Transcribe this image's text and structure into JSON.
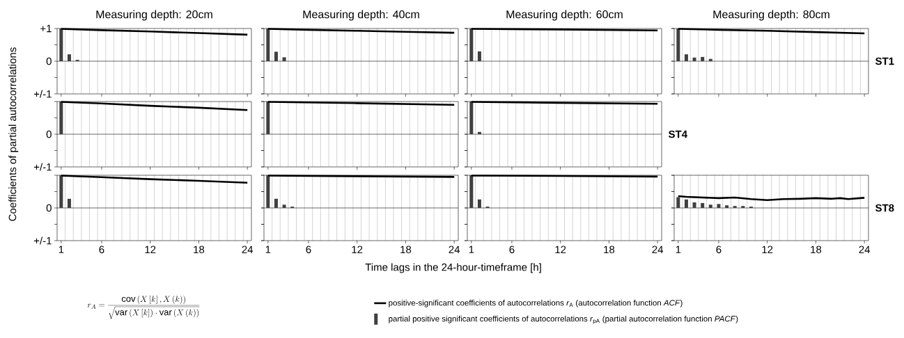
{
  "chart_data": [
    {
      "type": "bar",
      "title": "Measuring depth: 20cm",
      "tick_labels": "y",
      "grid": "x",
      "xlim": [
        0.5,
        24.5
      ],
      "ylim": [
        -1,
        1
      ],
      "xticks": [
        1,
        {
          "value": 1.5,
          "label": null
        },
        {
          "value": 2.5,
          "label": null
        },
        {
          "value": 3.5,
          "label": null
        },
        {
          "value": 4.5,
          "label": null
        },
        {
          "value": 5.5,
          "label": null
        },
        6,
        {
          "value": 6.5,
          "label": null
        },
        {
          "value": 7.5,
          "label": null
        },
        {
          "value": 8.5,
          "label": null
        },
        {
          "value": 9.5,
          "label": null
        },
        {
          "value": 10.5,
          "label": null
        },
        {
          "value": 11.5,
          "label": null
        },
        12,
        {
          "value": 12.5,
          "label": null
        },
        {
          "value": 13.5,
          "label": null
        },
        {
          "value": 14.5,
          "label": null
        },
        {
          "value": 15.5,
          "label": null
        },
        {
          "value": 16.5,
          "label": null
        },
        {
          "value": 17.5,
          "label": null
        },
        18,
        {
          "value": 18.5,
          "label": null
        },
        {
          "value": 19.5,
          "label": null
        },
        {
          "value": 20.5,
          "label": null
        },
        {
          "value": 21.5,
          "label": null
        },
        {
          "value": 22.5,
          "label": null
        },
        {
          "value": 23.5,
          "label": null
        },
        24
      ],
      "yticks": [
        {
          "value": -1,
          "label": "+/-1"
        },
        {
          "value": -0.5,
          "label": null
        },
        0,
        {
          "value": 0.5,
          "label": null
        },
        {
          "value": 1,
          "label": "+1"
        }
      ],
      "series": [
        {
          "color": "#404040",
          "x": [
            1,
            2,
            3
          ],
          "values": [
            1.0,
            0.21,
            0.04
          ]
        },
        {
          "type": "line",
          "color": "#000000",
          "x": [
            1,
            6,
            12,
            18,
            24
          ],
          "values": [
            0.99,
            0.95,
            0.91,
            0.86,
            0.81
          ]
        }
      ]
    },
    {
      "type": "bar",
      "title": "Measuring depth: 40cm",
      "tick_labels": false,
      "grid": "x",
      "xlim": [
        0.5,
        24.5
      ],
      "ylim": [
        -1,
        1
      ],
      "xticks": [
        1,
        {
          "value": 1.5,
          "label": null
        },
        {
          "value": 2.5,
          "label": null
        },
        {
          "value": 3.5,
          "label": null
        },
        {
          "value": 4.5,
          "label": null
        },
        {
          "value": 5.5,
          "label": null
        },
        6,
        {
          "value": 6.5,
          "label": null
        },
        {
          "value": 7.5,
          "label": null
        },
        {
          "value": 8.5,
          "label": null
        },
        {
          "value": 9.5,
          "label": null
        },
        {
          "value": 10.5,
          "label": null
        },
        {
          "value": 11.5,
          "label": null
        },
        12,
        {
          "value": 12.5,
          "label": null
        },
        {
          "value": 13.5,
          "label": null
        },
        {
          "value": 14.5,
          "label": null
        },
        {
          "value": 15.5,
          "label": null
        },
        {
          "value": 16.5,
          "label": null
        },
        {
          "value": 17.5,
          "label": null
        },
        18,
        {
          "value": 18.5,
          "label": null
        },
        {
          "value": 19.5,
          "label": null
        },
        {
          "value": 20.5,
          "label": null
        },
        {
          "value": 21.5,
          "label": null
        },
        {
          "value": 22.5,
          "label": null
        },
        {
          "value": 23.5,
          "label": null
        },
        24
      ],
      "yticks": [
        {
          "value": -1,
          "label": null
        },
        {
          "value": -0.5,
          "label": null
        },
        {
          "value": 0,
          "label": null
        },
        {
          "value": 0.5,
          "label": null
        },
        {
          "value": 1,
          "label": null
        }
      ],
      "series": [
        {
          "color": "#404040",
          "x": [
            1,
            2,
            3
          ],
          "values": [
            1.0,
            0.29,
            0.12
          ]
        },
        {
          "type": "line",
          "color": "#000000",
          "x": [
            1,
            6,
            12,
            18,
            24
          ],
          "values": [
            0.99,
            0.96,
            0.93,
            0.9,
            0.87
          ]
        }
      ]
    },
    {
      "type": "bar",
      "title": "Measuring depth: 60cm",
      "tick_labels": false,
      "grid": "x",
      "xlim": [
        0.5,
        24.5
      ],
      "ylim": [
        -1,
        1
      ],
      "xticks": [
        1,
        {
          "value": 1.5,
          "label": null
        },
        {
          "value": 2.5,
          "label": null
        },
        {
          "value": 3.5,
          "label": null
        },
        {
          "value": 4.5,
          "label": null
        },
        {
          "value": 5.5,
          "label": null
        },
        6,
        {
          "value": 6.5,
          "label": null
        },
        {
          "value": 7.5,
          "label": null
        },
        {
          "value": 8.5,
          "label": null
        },
        {
          "value": 9.5,
          "label": null
        },
        {
          "value": 10.5,
          "label": null
        },
        {
          "value": 11.5,
          "label": null
        },
        12,
        {
          "value": 12.5,
          "label": null
        },
        {
          "value": 13.5,
          "label": null
        },
        {
          "value": 14.5,
          "label": null
        },
        {
          "value": 15.5,
          "label": null
        },
        {
          "value": 16.5,
          "label": null
        },
        {
          "value": 17.5,
          "label": null
        },
        18,
        {
          "value": 18.5,
          "label": null
        },
        {
          "value": 19.5,
          "label": null
        },
        {
          "value": 20.5,
          "label": null
        },
        {
          "value": 21.5,
          "label": null
        },
        {
          "value": 22.5,
          "label": null
        },
        {
          "value": 23.5,
          "label": null
        },
        24
      ],
      "yticks": [
        {
          "value": -1,
          "label": null
        },
        {
          "value": -0.5,
          "label": null
        },
        {
          "value": 0,
          "label": null
        },
        {
          "value": 0.5,
          "label": null
        },
        {
          "value": 1,
          "label": null
        }
      ],
      "series": [
        {
          "color": "#404040",
          "x": [
            1,
            2
          ],
          "values": [
            1.0,
            0.3
          ]
        },
        {
          "type": "line",
          "color": "#000000",
          "x": [
            1,
            12,
            24
          ],
          "values": [
            0.99,
            0.97,
            0.94
          ]
        }
      ]
    },
    {
      "type": "bar",
      "title": "Measuring depth: 80cm",
      "y2label": "ST1",
      "tick_labels": false,
      "grid": "x",
      "xlim": [
        0.5,
        24.5
      ],
      "ylim": [
        -1,
        1
      ],
      "xticks": [
        1,
        {
          "value": 1.5,
          "label": null
        },
        {
          "value": 2.5,
          "label": null
        },
        {
          "value": 3.5,
          "label": null
        },
        {
          "value": 4.5,
          "label": null
        },
        {
          "value": 5.5,
          "label": null
        },
        6,
        {
          "value": 6.5,
          "label": null
        },
        {
          "value": 7.5,
          "label": null
        },
        {
          "value": 8.5,
          "label": null
        },
        {
          "value": 9.5,
          "label": null
        },
        {
          "value": 10.5,
          "label": null
        },
        {
          "value": 11.5,
          "label": null
        },
        12,
        {
          "value": 12.5,
          "label": null
        },
        {
          "value": 13.5,
          "label": null
        },
        {
          "value": 14.5,
          "label": null
        },
        {
          "value": 15.5,
          "label": null
        },
        {
          "value": 16.5,
          "label": null
        },
        {
          "value": 17.5,
          "label": null
        },
        18,
        {
          "value": 18.5,
          "label": null
        },
        {
          "value": 19.5,
          "label": null
        },
        {
          "value": 20.5,
          "label": null
        },
        {
          "value": 21.5,
          "label": null
        },
        {
          "value": 22.5,
          "label": null
        },
        {
          "value": 23.5,
          "label": null
        },
        24
      ],
      "yticks": [
        {
          "value": -1,
          "label": null
        },
        {
          "value": -0.5,
          "label": null
        },
        {
          "value": 0,
          "label": null
        },
        {
          "value": 0.5,
          "label": null
        },
        {
          "value": 1,
          "label": null
        }
      ],
      "series": [
        {
          "color": "#404040",
          "x": [
            1,
            2,
            3,
            4,
            5
          ],
          "values": [
            1.0,
            0.21,
            0.11,
            0.13,
            0.07
          ]
        },
        {
          "type": "line",
          "color": "#000000",
          "x": [
            1,
            6,
            12,
            18,
            24
          ],
          "values": [
            0.99,
            0.96,
            0.93,
            0.89,
            0.85
          ]
        }
      ]
    },
    {
      "type": "bar",
      "ylabel": "Coefficients of partial autocorrelations",
      "tick_labels": "y",
      "grid": "x",
      "xlim": [
        0.5,
        24.5
      ],
      "ylim": [
        -1,
        1
      ],
      "xticks": [
        1,
        {
          "value": 1.5,
          "label": null
        },
        {
          "value": 2.5,
          "label": null
        },
        {
          "value": 3.5,
          "label": null
        },
        {
          "value": 4.5,
          "label": null
        },
        {
          "value": 5.5,
          "label": null
        },
        6,
        {
          "value": 6.5,
          "label": null
        },
        {
          "value": 7.5,
          "label": null
        },
        {
          "value": 8.5,
          "label": null
        },
        {
          "value": 9.5,
          "label": null
        },
        {
          "value": 10.5,
          "label": null
        },
        {
          "value": 11.5,
          "label": null
        },
        12,
        {
          "value": 12.5,
          "label": null
        },
        {
          "value": 13.5,
          "label": null
        },
        {
          "value": 14.5,
          "label": null
        },
        {
          "value": 15.5,
          "label": null
        },
        {
          "value": 16.5,
          "label": null
        },
        {
          "value": 17.5,
          "label": null
        },
        18,
        {
          "value": 18.5,
          "label": null
        },
        {
          "value": 19.5,
          "label": null
        },
        {
          "value": 20.5,
          "label": null
        },
        {
          "value": 21.5,
          "label": null
        },
        {
          "value": 22.5,
          "label": null
        },
        {
          "value": 23.5,
          "label": null
        },
        24
      ],
      "yticks": [
        {
          "value": -1,
          "label": "+/-1"
        },
        {
          "value": -0.5,
          "label": null
        },
        0,
        {
          "value": 0.5,
          "label": null
        },
        {
          "value": 1,
          "label": null
        }
      ],
      "series": [
        {
          "color": "#404040",
          "x": [
            1
          ],
          "values": [
            1.0
          ]
        },
        {
          "type": "line",
          "color": "#000000",
          "x": [
            1,
            6,
            12,
            18,
            24
          ],
          "values": [
            0.99,
            0.94,
            0.87,
            0.81,
            0.74
          ]
        }
      ]
    },
    {
      "type": "bar",
      "tick_labels": false,
      "grid": "x",
      "xlim": [
        0.5,
        24.5
      ],
      "ylim": [
        -1,
        1
      ],
      "xticks": [
        1,
        {
          "value": 1.5,
          "label": null
        },
        {
          "value": 2.5,
          "label": null
        },
        {
          "value": 3.5,
          "label": null
        },
        {
          "value": 4.5,
          "label": null
        },
        {
          "value": 5.5,
          "label": null
        },
        6,
        {
          "value": 6.5,
          "label": null
        },
        {
          "value": 7.5,
          "label": null
        },
        {
          "value": 8.5,
          "label": null
        },
        {
          "value": 9.5,
          "label": null
        },
        {
          "value": 10.5,
          "label": null
        },
        {
          "value": 11.5,
          "label": null
        },
        12,
        {
          "value": 12.5,
          "label": null
        },
        {
          "value": 13.5,
          "label": null
        },
        {
          "value": 14.5,
          "label": null
        },
        {
          "value": 15.5,
          "label": null
        },
        {
          "value": 16.5,
          "label": null
        },
        {
          "value": 17.5,
          "label": null
        },
        18,
        {
          "value": 18.5,
          "label": null
        },
        {
          "value": 19.5,
          "label": null
        },
        {
          "value": 20.5,
          "label": null
        },
        {
          "value": 21.5,
          "label": null
        },
        {
          "value": 22.5,
          "label": null
        },
        {
          "value": 23.5,
          "label": null
        },
        24
      ],
      "yticks": [
        {
          "value": -1,
          "label": null
        },
        {
          "value": -0.5,
          "label": null
        },
        {
          "value": 0,
          "label": null
        },
        {
          "value": 0.5,
          "label": null
        },
        {
          "value": 1,
          "label": null
        }
      ],
      "series": [
        {
          "color": "#404040",
          "x": [
            1
          ],
          "values": [
            1.0
          ]
        },
        {
          "type": "line",
          "color": "#000000",
          "x": [
            1,
            12,
            24
          ],
          "values": [
            0.99,
            0.95,
            0.9
          ]
        }
      ]
    },
    {
      "type": "bar",
      "y2label": "ST4",
      "tick_labels": false,
      "grid": "x",
      "xlim": [
        0.5,
        24.5
      ],
      "ylim": [
        -1,
        1
      ],
      "xticks": [
        1,
        {
          "value": 1.5,
          "label": null
        },
        {
          "value": 2.5,
          "label": null
        },
        {
          "value": 3.5,
          "label": null
        },
        {
          "value": 4.5,
          "label": null
        },
        {
          "value": 5.5,
          "label": null
        },
        6,
        {
          "value": 6.5,
          "label": null
        },
        {
          "value": 7.5,
          "label": null
        },
        {
          "value": 8.5,
          "label": null
        },
        {
          "value": 9.5,
          "label": null
        },
        {
          "value": 10.5,
          "label": null
        },
        {
          "value": 11.5,
          "label": null
        },
        12,
        {
          "value": 12.5,
          "label": null
        },
        {
          "value": 13.5,
          "label": null
        },
        {
          "value": 14.5,
          "label": null
        },
        {
          "value": 15.5,
          "label": null
        },
        {
          "value": 16.5,
          "label": null
        },
        {
          "value": 17.5,
          "label": null
        },
        18,
        {
          "value": 18.5,
          "label": null
        },
        {
          "value": 19.5,
          "label": null
        },
        {
          "value": 20.5,
          "label": null
        },
        {
          "value": 21.5,
          "label": null
        },
        {
          "value": 22.5,
          "label": null
        },
        {
          "value": 23.5,
          "label": null
        },
        24
      ],
      "yticks": [
        {
          "value": -1,
          "label": null
        },
        {
          "value": -0.5,
          "label": null
        },
        {
          "value": 0,
          "label": null
        },
        {
          "value": 0.5,
          "label": null
        },
        {
          "value": 1,
          "label": null
        }
      ],
      "series": [
        {
          "color": "#404040",
          "x": [
            1,
            2
          ],
          "values": [
            1.0,
            0.07
          ]
        },
        {
          "type": "line",
          "color": "#000000",
          "x": [
            1,
            12,
            24
          ],
          "values": [
            0.99,
            0.96,
            0.93
          ]
        }
      ]
    },
    {
      "type": "bar",
      "annotations": [
        "r_{A}=\\frac{\\mathrm{cov}\\left(X\\left[k\\right],X\\left(k\\right)\\right)}{\\sqrt{\\mathrm{var}\\left(X\\left[k\\right]\\right)\\cdot\\mathrm{var}\\left(X\\left(k\\right)\\right)}}"
      ],
      "grid": "x",
      "xlim": [
        0.5,
        24.5
      ],
      "ylim": [
        -1,
        1
      ],
      "xticks": [
        1,
        {
          "value": 1.5,
          "label": null
        },
        {
          "value": 2.5,
          "label": null
        },
        {
          "value": 3.5,
          "label": null
        },
        {
          "value": 4.5,
          "label": null
        },
        {
          "value": 5.5,
          "label": null
        },
        6,
        {
          "value": 6.5,
          "label": null
        },
        {
          "value": 7.5,
          "label": null
        },
        {
          "value": 8.5,
          "label": null
        },
        {
          "value": 9.5,
          "label": null
        },
        {
          "value": 10.5,
          "label": null
        },
        {
          "value": 11.5,
          "label": null
        },
        12,
        {
          "value": 12.5,
          "label": null
        },
        {
          "value": 13.5,
          "label": null
        },
        {
          "value": 14.5,
          "label": null
        },
        {
          "value": 15.5,
          "label": null
        },
        {
          "value": 16.5,
          "label": null
        },
        {
          "value": 17.5,
          "label": null
        },
        18,
        {
          "value": 18.5,
          "label": null
        },
        {
          "value": 19.5,
          "label": null
        },
        {
          "value": 20.5,
          "label": null
        },
        {
          "value": 21.5,
          "label": null
        },
        {
          "value": 22.5,
          "label": null
        },
        {
          "value": 23.5,
          "label": null
        },
        24
      ],
      "yticks": [
        {
          "value": -1,
          "label": "+/-1"
        },
        {
          "value": -0.5,
          "label": null
        },
        0,
        {
          "value": 0.5,
          "label": null
        },
        {
          "value": 1,
          "label": null
        }
      ],
      "series": [
        {
          "color": "#404040",
          "x": [
            1,
            2
          ],
          "values": [
            1.0,
            0.28
          ]
        },
        {
          "type": "line",
          "color": "#000000",
          "x": [
            1,
            6,
            12,
            18,
            24
          ],
          "values": [
            0.99,
            0.94,
            0.88,
            0.83,
            0.77
          ]
        }
      ]
    },
    {
      "type": "bar",
      "xlabel": "Time lags in the 24-hour-timeframe [h]",
      "tick_labels": "x",
      "grid": "x",
      "xlim": [
        0.5,
        24.5
      ],
      "ylim": [
        -1,
        1
      ],
      "xticks": [
        1,
        {
          "value": 1.5,
          "label": null
        },
        {
          "value": 2.5,
          "label": null
        },
        {
          "value": 3.5,
          "label": null
        },
        {
          "value": 4.5,
          "label": null
        },
        {
          "value": 5.5,
          "label": null
        },
        6,
        {
          "value": 6.5,
          "label": null
        },
        {
          "value": 7.5,
          "label": null
        },
        {
          "value": 8.5,
          "label": null
        },
        {
          "value": 9.5,
          "label": null
        },
        {
          "value": 10.5,
          "label": null
        },
        {
          "value": 11.5,
          "label": null
        },
        12,
        {
          "value": 12.5,
          "label": null
        },
        {
          "value": 13.5,
          "label": null
        },
        {
          "value": 14.5,
          "label": null
        },
        {
          "value": 15.5,
          "label": null
        },
        {
          "value": 16.5,
          "label": null
        },
        {
          "value": 17.5,
          "label": null
        },
        18,
        {
          "value": 18.5,
          "label": null
        },
        {
          "value": 19.5,
          "label": null
        },
        {
          "value": 20.5,
          "label": null
        },
        {
          "value": 21.5,
          "label": null
        },
        {
          "value": 22.5,
          "label": null
        },
        {
          "value": 23.5,
          "label": null
        },
        24
      ],
      "yticks": [
        {
          "value": -1,
          "label": null
        },
        {
          "value": -0.5,
          "label": null
        },
        {
          "value": 0,
          "label": null
        },
        {
          "value": 0.5,
          "label": null
        },
        {
          "value": 1,
          "label": null
        }
      ],
      "series": [
        {
          "color": "#404040",
          "x": [
            1,
            2,
            3,
            4
          ],
          "values": [
            1.0,
            0.28,
            0.1,
            0.04
          ]
        },
        {
          "type": "line",
          "color": "#000000",
          "x": [
            1,
            12,
            24
          ],
          "values": [
            0.99,
            0.97,
            0.95
          ]
        }
      ]
    },
    {
      "type": "bar",
      "tick_labels": "x",
      "grid": "x",
      "xlim": [
        0.5,
        24.5
      ],
      "ylim": [
        -1,
        1
      ],
      "xticks": [
        1,
        {
          "value": 1.5,
          "label": null
        },
        {
          "value": 2.5,
          "label": null
        },
        {
          "value": 3.5,
          "label": null
        },
        {
          "value": 4.5,
          "label": null
        },
        {
          "value": 5.5,
          "label": null
        },
        6,
        {
          "value": 6.5,
          "label": null
        },
        {
          "value": 7.5,
          "label": null
        },
        {
          "value": 8.5,
          "label": null
        },
        {
          "value": 9.5,
          "label": null
        },
        {
          "value": 10.5,
          "label": null
        },
        {
          "value": 11.5,
          "label": null
        },
        12,
        {
          "value": 12.5,
          "label": null
        },
        {
          "value": 13.5,
          "label": null
        },
        {
          "value": 14.5,
          "label": null
        },
        {
          "value": 15.5,
          "label": null
        },
        {
          "value": 16.5,
          "label": null
        },
        {
          "value": 17.5,
          "label": null
        },
        18,
        {
          "value": 18.5,
          "label": null
        },
        {
          "value": 19.5,
          "label": null
        },
        {
          "value": 20.5,
          "label": null
        },
        {
          "value": 21.5,
          "label": null
        },
        {
          "value": 22.5,
          "label": null
        },
        {
          "value": 23.5,
          "label": null
        },
        24
      ],
      "yticks": [
        {
          "value": -1,
          "label": null
        },
        {
          "value": -0.5,
          "label": null
        },
        {
          "value": 0,
          "label": null
        },
        {
          "value": 0.5,
          "label": null
        },
        {
          "value": 1,
          "label": null
        }
      ],
      "series": [
        {
          "color": "#404040",
          "x": [
            1,
            2,
            3
          ],
          "values": [
            1.0,
            0.26,
            0.04
          ]
        },
        {
          "type": "line",
          "color": "#000000",
          "x": [
            1,
            12,
            24
          ],
          "values": [
            0.99,
            0.98,
            0.96
          ]
        }
      ]
    },
    {
      "type": "bar",
      "y2label": "ST8",
      "legend": "bottom",
      "tick_labels": "x",
      "grid": "x",
      "xlim": [
        0.5,
        24.5
      ],
      "ylim": [
        -1,
        1
      ],
      "xticks": [
        1,
        {
          "value": 1.5,
          "label": null
        },
        {
          "value": 2.5,
          "label": null
        },
        {
          "value": 3.5,
          "label": null
        },
        {
          "value": 4.5,
          "label": null
        },
        {
          "value": 5.5,
          "label": null
        },
        6,
        {
          "value": 6.5,
          "label": null
        },
        {
          "value": 7.5,
          "label": null
        },
        {
          "value": 8.5,
          "label": null
        },
        {
          "value": 9.5,
          "label": null
        },
        {
          "value": 10.5,
          "label": null
        },
        {
          "value": 11.5,
          "label": null
        },
        12,
        {
          "value": 12.5,
          "label": null
        },
        {
          "value": 13.5,
          "label": null
        },
        {
          "value": 14.5,
          "label": null
        },
        {
          "value": 15.5,
          "label": null
        },
        {
          "value": 16.5,
          "label": null
        },
        {
          "value": 17.5,
          "label": null
        },
        18,
        {
          "value": 18.5,
          "label": null
        },
        {
          "value": 19.5,
          "label": null
        },
        {
          "value": 20.5,
          "label": null
        },
        {
          "value": 21.5,
          "label": null
        },
        {
          "value": 22.5,
          "label": null
        },
        {
          "value": 23.5,
          "label": null
        },
        24
      ],
      "yticks": [
        {
          "value": -1,
          "label": null
        },
        {
          "value": -0.5,
          "label": null
        },
        {
          "value": 0,
          "label": null
        },
        {
          "value": 0.5,
          "label": null
        },
        {
          "value": 1,
          "label": null
        }
      ],
      "series": [
        {
          "name": "partial positive significant coefficients of autocorrelations *r*$_{pA}$ (partial autocorrelation function *PACF*)",
          "color": "#404040",
          "x": [
            1,
            2,
            3,
            4,
            5,
            6,
            7,
            8,
            9,
            10
          ],
          "values": [
            0.33,
            0.26,
            0.17,
            0.15,
            0.1,
            0.12,
            0.08,
            0.06,
            0.06,
            0.04
          ]
        },
        {
          "type": "line",
          "name": "positive-significant coefficients of autocorrelations *r*$_{A}$ (autocorrelation function *ACF*)",
          "color": "#000000",
          "x": [
            1,
            2,
            4,
            6,
            8,
            10,
            12,
            14,
            16,
            18,
            20,
            21,
            22,
            24
          ],
          "values": [
            0.36,
            0.34,
            0.32,
            0.3,
            0.32,
            0.27,
            0.24,
            0.27,
            0.28,
            0.3,
            0.28,
            0.3,
            0.27,
            0.31
          ]
        }
      ]
    }
  ]
}
